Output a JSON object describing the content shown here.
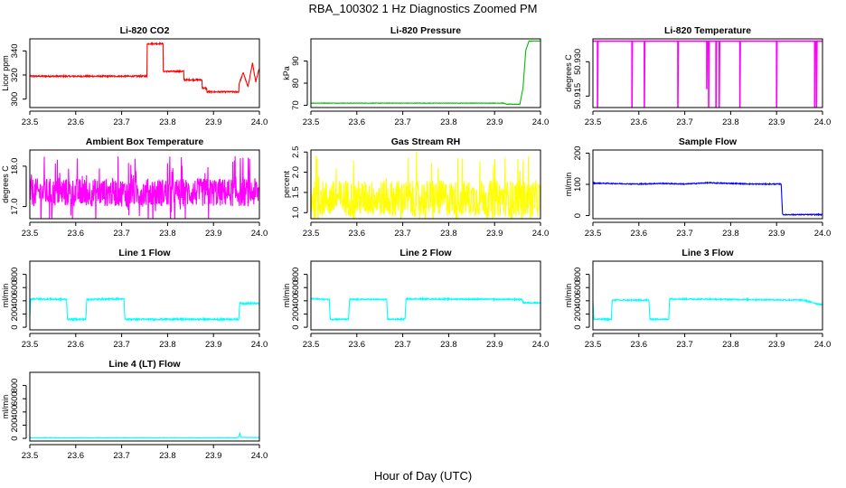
{
  "figure": {
    "title": "RBA_100302  1 Hz Diagnostics Zoomed PM",
    "xlabel": "Hour of Day (UTC)"
  },
  "chart_data": [
    {
      "id": "co2",
      "type": "line",
      "title": "Li-820 CO2",
      "ylabel": "Licor ppm",
      "color": "#ff0000",
      "xlim": [
        23.5,
        24.0
      ],
      "ylim": [
        293,
        350
      ],
      "xticks": [
        23.5,
        23.6,
        23.7,
        23.8,
        23.9,
        24.0
      ],
      "xtick_labels": [
        "23.5",
        "23.6",
        "23.7",
        "23.8",
        "23.9",
        "24.0"
      ],
      "yticks": [
        300,
        320,
        340
      ],
      "ytick_labels": [
        "300",
        "320",
        "340"
      ],
      "noise": 0.6,
      "series": [
        {
          "points": [
            [
              23.5,
              319
            ],
            [
              23.6,
              319
            ],
            [
              23.7,
              319
            ],
            [
              23.755,
              319
            ],
            [
              23.755,
              346
            ],
            [
              23.79,
              346
            ],
            [
              23.79,
              323
            ],
            [
              23.835,
              323
            ],
            [
              23.835,
              316
            ],
            [
              23.875,
              316
            ],
            [
              23.875,
              309
            ],
            [
              23.885,
              309
            ],
            [
              23.885,
              306
            ],
            [
              23.955,
              306
            ],
            [
              23.955,
              312
            ],
            [
              23.965,
              322
            ],
            [
              23.975,
              310
            ],
            [
              23.985,
              330
            ],
            [
              23.992,
              314
            ],
            [
              24.0,
              326
            ]
          ]
        }
      ]
    },
    {
      "id": "pressure",
      "type": "line",
      "title": "Li-820 Pressure",
      "ylabel": "kPa",
      "color": "#00c000",
      "xlim": [
        23.5,
        24.0
      ],
      "ylim": [
        69,
        100
      ],
      "xticks": [
        23.5,
        23.6,
        23.7,
        23.8,
        23.9,
        24.0
      ],
      "xtick_labels": [
        "23.5",
        "23.6",
        "23.7",
        "23.8",
        "23.9",
        "24.0"
      ],
      "yticks": [
        70,
        80,
        90
      ],
      "ytick_labels": [
        "70",
        "80",
        "90"
      ],
      "noise": 0.1,
      "series": [
        {
          "points": [
            [
              23.5,
              71
            ],
            [
              23.92,
              71
            ],
            [
              23.925,
              70.5
            ],
            [
              23.955,
              70.5
            ],
            [
              23.962,
              78
            ],
            [
              23.968,
              95
            ],
            [
              23.975,
              99
            ],
            [
              24.0,
              99
            ]
          ]
        }
      ]
    },
    {
      "id": "temperature",
      "type": "line",
      "title": "Li-820 Temperature",
      "ylabel": "degrees C",
      "color": "#ff00ff",
      "xlim": [
        23.5,
        24.0
      ],
      "ylim": [
        50.91,
        50.94
      ],
      "xticks": [
        23.5,
        23.6,
        23.7,
        23.8,
        23.9,
        24.0
      ],
      "xtick_labels": [
        "23.5",
        "23.6",
        "23.7",
        "23.8",
        "23.9",
        "24.0"
      ],
      "yticks": [
        50.915,
        50.93
      ],
      "ytick_labels": [
        "50.915",
        "50.930"
      ],
      "noise": 0,
      "series": [
        {
          "points": [
            [
              23.5,
              50.939
            ],
            [
              23.51,
              50.939
            ],
            [
              23.51,
              50.91
            ],
            [
              23.511,
              50.939
            ],
            [
              23.585,
              50.939
            ],
            [
              23.585,
              50.91
            ],
            [
              23.586,
              50.939
            ],
            [
              23.612,
              50.939
            ],
            [
              23.612,
              50.91
            ],
            [
              23.613,
              50.939
            ],
            [
              23.685,
              50.939
            ],
            [
              23.685,
              50.91
            ],
            [
              23.686,
              50.939
            ],
            [
              23.748,
              50.939
            ],
            [
              23.748,
              50.918
            ],
            [
              23.749,
              50.939
            ],
            [
              23.752,
              50.939
            ],
            [
              23.752,
              50.91
            ],
            [
              23.753,
              50.939
            ],
            [
              23.768,
              50.939
            ],
            [
              23.768,
              50.91
            ],
            [
              23.769,
              50.939
            ],
            [
              23.775,
              50.939
            ],
            [
              23.775,
              50.91
            ],
            [
              23.776,
              50.939
            ],
            [
              23.82,
              50.939
            ],
            [
              23.82,
              50.91
            ],
            [
              23.821,
              50.939
            ],
            [
              23.9,
              50.939
            ],
            [
              23.9,
              50.91
            ],
            [
              23.901,
              50.939
            ],
            [
              23.983,
              50.939
            ],
            [
              23.983,
              50.91
            ],
            [
              23.984,
              50.939
            ],
            [
              23.987,
              50.939
            ],
            [
              23.987,
              50.91
            ],
            [
              23.988,
              50.939
            ],
            [
              24.0,
              50.939
            ]
          ]
        }
      ]
    },
    {
      "id": "ambient",
      "type": "line",
      "title": "Ambient Box Temperature",
      "ylabel": "degrees C",
      "color": "#ff00ff",
      "xlim": [
        23.5,
        24.0
      ],
      "ylim": [
        16.7,
        18.4
      ],
      "xticks": [
        23.5,
        23.6,
        23.7,
        23.8,
        23.9,
        24.0
      ],
      "xtick_labels": [
        "23.5",
        "23.6",
        "23.7",
        "23.8",
        "23.9",
        "24.0"
      ],
      "yticks": [
        17.0,
        18.0
      ],
      "ytick_labels": [
        "17.0",
        "18.0"
      ],
      "noise": 0.35,
      "series": [
        {
          "points": [
            [
              23.5,
              17.35
            ],
            [
              24.0,
              17.35
            ]
          ]
        }
      ]
    },
    {
      "id": "rh",
      "type": "line",
      "title": "Gas Stream RH",
      "ylabel": "percent",
      "color": "#ffff00",
      "xlim": [
        23.5,
        24.0
      ],
      "ylim": [
        0.85,
        2.55
      ],
      "xticks": [
        23.5,
        23.6,
        23.7,
        23.8,
        23.9,
        24.0
      ],
      "xtick_labels": [
        "23.5",
        "23.6",
        "23.7",
        "23.8",
        "23.9",
        "24.0"
      ],
      "yticks": [
        1.0,
        1.5,
        2.0,
        2.5
      ],
      "ytick_labels": [
        "1.0",
        "1.5",
        "2.0",
        "2.5"
      ],
      "noise": 0.45,
      "series": [
        {
          "points": [
            [
              23.5,
              1.35
            ],
            [
              24.0,
              1.35
            ]
          ]
        }
      ]
    },
    {
      "id": "sample",
      "type": "line",
      "title": "Sample Flow",
      "ylabel": "ml/min",
      "color": "#0000ff",
      "xlim": [
        23.5,
        24.0
      ],
      "ylim": [
        -10,
        210
      ],
      "xticks": [
        23.5,
        23.6,
        23.7,
        23.8,
        23.9,
        24.0
      ],
      "xtick_labels": [
        "23.5",
        "23.6",
        "23.7",
        "23.8",
        "23.9",
        "24.0"
      ],
      "yticks": [
        0,
        100,
        200
      ],
      "ytick_labels": [
        "0",
        "100",
        "200"
      ],
      "noise": 1.5,
      "series": [
        {
          "points": [
            [
              23.5,
              104
            ],
            [
              23.6,
              101
            ],
            [
              23.65,
              103
            ],
            [
              23.7,
              101
            ],
            [
              23.75,
              105
            ],
            [
              23.8,
              103
            ],
            [
              23.85,
              101
            ],
            [
              23.91,
              101
            ],
            [
              23.913,
              3
            ],
            [
              24.0,
              3
            ]
          ]
        }
      ]
    },
    {
      "id": "line1",
      "type": "line",
      "title": "Line 1 Flow",
      "ylabel": "ml/min",
      "color": "#00ffff",
      "xlim": [
        23.5,
        24.0
      ],
      "ylim": [
        -40,
        1000
      ],
      "xticks": [
        23.5,
        23.6,
        23.7,
        23.8,
        23.9,
        24.0
      ],
      "xtick_labels": [
        "23.5",
        "23.6",
        "23.7",
        "23.8",
        "23.9",
        "24.0"
      ],
      "yticks": [
        0,
        200,
        400,
        600,
        800
      ],
      "ytick_labels": [
        "0",
        "200",
        "400",
        "600",
        "800"
      ],
      "noise": 12,
      "series": [
        {
          "points": [
            [
              23.5,
              150
            ],
            [
              23.502,
              430
            ],
            [
              23.58,
              420
            ],
            [
              23.582,
              120
            ],
            [
              23.622,
              120
            ],
            [
              23.624,
              420
            ],
            [
              23.705,
              430
            ],
            [
              23.707,
              120
            ],
            [
              23.955,
              120
            ],
            [
              23.957,
              360
            ],
            [
              24.0,
              360
            ]
          ]
        }
      ]
    },
    {
      "id": "line2",
      "type": "line",
      "title": "Line 2 Flow",
      "ylabel": "ml/min",
      "color": "#00ffff",
      "xlim": [
        23.5,
        24.0
      ],
      "ylim": [
        -40,
        1000
      ],
      "xticks": [
        23.5,
        23.6,
        23.7,
        23.8,
        23.9,
        24.0
      ],
      "xtick_labels": [
        "23.5",
        "23.6",
        "23.7",
        "23.8",
        "23.9",
        "24.0"
      ],
      "yticks": [
        0,
        200,
        400,
        600,
        800
      ],
      "ytick_labels": [
        "0",
        "200",
        "400",
        "600",
        "800"
      ],
      "noise": 10,
      "series": [
        {
          "points": [
            [
              23.5,
              430
            ],
            [
              23.54,
              420
            ],
            [
              23.542,
              120
            ],
            [
              23.582,
              120
            ],
            [
              23.584,
              420
            ],
            [
              23.665,
              420
            ],
            [
              23.667,
              120
            ],
            [
              23.705,
              120
            ],
            [
              23.707,
              430
            ],
            [
              23.96,
              420
            ],
            [
              23.962,
              370
            ],
            [
              24.0,
              370
            ]
          ]
        }
      ]
    },
    {
      "id": "line3",
      "type": "line",
      "title": "Line 3 Flow",
      "ylabel": "ml/min",
      "color": "#00ffff",
      "xlim": [
        23.5,
        24.0
      ],
      "ylim": [
        -40,
        1000
      ],
      "xticks": [
        23.5,
        23.6,
        23.7,
        23.8,
        23.9,
        24.0
      ],
      "xtick_labels": [
        "23.5",
        "23.6",
        "23.7",
        "23.8",
        "23.9",
        "24.0"
      ],
      "yticks": [
        0,
        200,
        400,
        600,
        800
      ],
      "ytick_labels": [
        "0",
        "200",
        "400",
        "600",
        "800"
      ],
      "noise": 10,
      "series": [
        {
          "points": [
            [
              23.5,
              400
            ],
            [
              23.502,
              120
            ],
            [
              23.54,
              120
            ],
            [
              23.542,
              410
            ],
            [
              23.622,
              410
            ],
            [
              23.624,
              120
            ],
            [
              23.665,
              120
            ],
            [
              23.667,
              430
            ],
            [
              23.96,
              410
            ],
            [
              23.985,
              360
            ],
            [
              24.0,
              340
            ]
          ]
        }
      ]
    },
    {
      "id": "line4",
      "type": "line",
      "title": "Line 4 (LT) Flow",
      "ylabel": "ml/min",
      "color": "#00ffff",
      "xlim": [
        23.5,
        24.0
      ],
      "ylim": [
        -40,
        1000
      ],
      "xticks": [
        23.5,
        23.6,
        23.7,
        23.8,
        23.9,
        24.0
      ],
      "xtick_labels": [
        "23.5",
        "23.6",
        "23.7",
        "23.8",
        "23.9",
        "24.0"
      ],
      "yticks": [
        0,
        200,
        400,
        600,
        800
      ],
      "ytick_labels": [
        "0",
        "200",
        "400",
        "600",
        "800"
      ],
      "noise": 3,
      "series": [
        {
          "points": [
            [
              23.5,
              10
            ],
            [
              23.95,
              10
            ],
            [
              23.955,
              15
            ],
            [
              23.957,
              80
            ],
            [
              23.96,
              15
            ],
            [
              24.0,
              12
            ]
          ]
        }
      ]
    }
  ]
}
